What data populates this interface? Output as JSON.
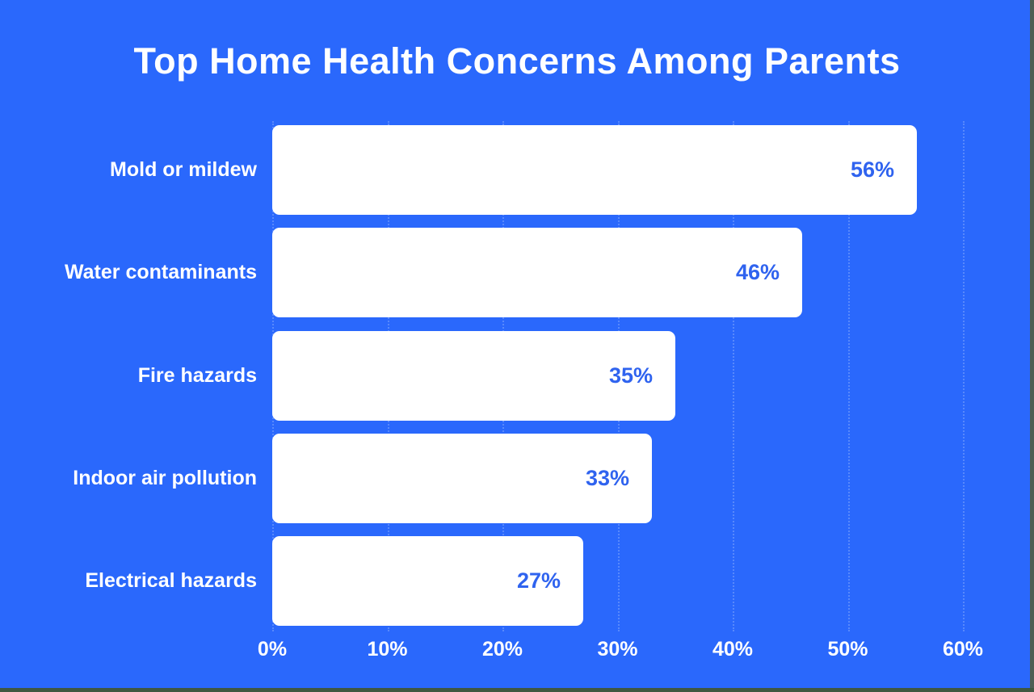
{
  "page": {
    "background_color": "#2a68fc",
    "edge_strip_right_color": "#4d5e53",
    "edge_strip_bottom_color": "#3f5741"
  },
  "chart_data": {
    "type": "bar",
    "orientation": "horizontal",
    "title": "Top Home Health Concerns Among Parents",
    "categories": [
      "Mold or mildew",
      "Water contaminants",
      "Fire hazards",
      "Indoor air pollution",
      "Electrical hazards"
    ],
    "values": [
      56,
      46,
      35,
      33,
      27
    ],
    "value_labels": [
      "56%",
      "46%",
      "35%",
      "33%",
      "27%"
    ],
    "xlabel": "",
    "ylabel": "",
    "x_axis": {
      "min": 0,
      "max": 60,
      "tick_values": [
        0,
        10,
        20,
        30,
        40,
        50,
        60
      ],
      "tick_labels": [
        "0%",
        "10%",
        "20%",
        "30%",
        "40%",
        "50%",
        "60%"
      ]
    },
    "grid": "faint dotted vertical lines at each tick",
    "legend": false,
    "bar_color": "#ffffff",
    "value_label_color": "#2f63ef",
    "category_label_color": "#ffffff",
    "axis_label_color": "#ffffff",
    "title_color": "#fdfeff"
  }
}
